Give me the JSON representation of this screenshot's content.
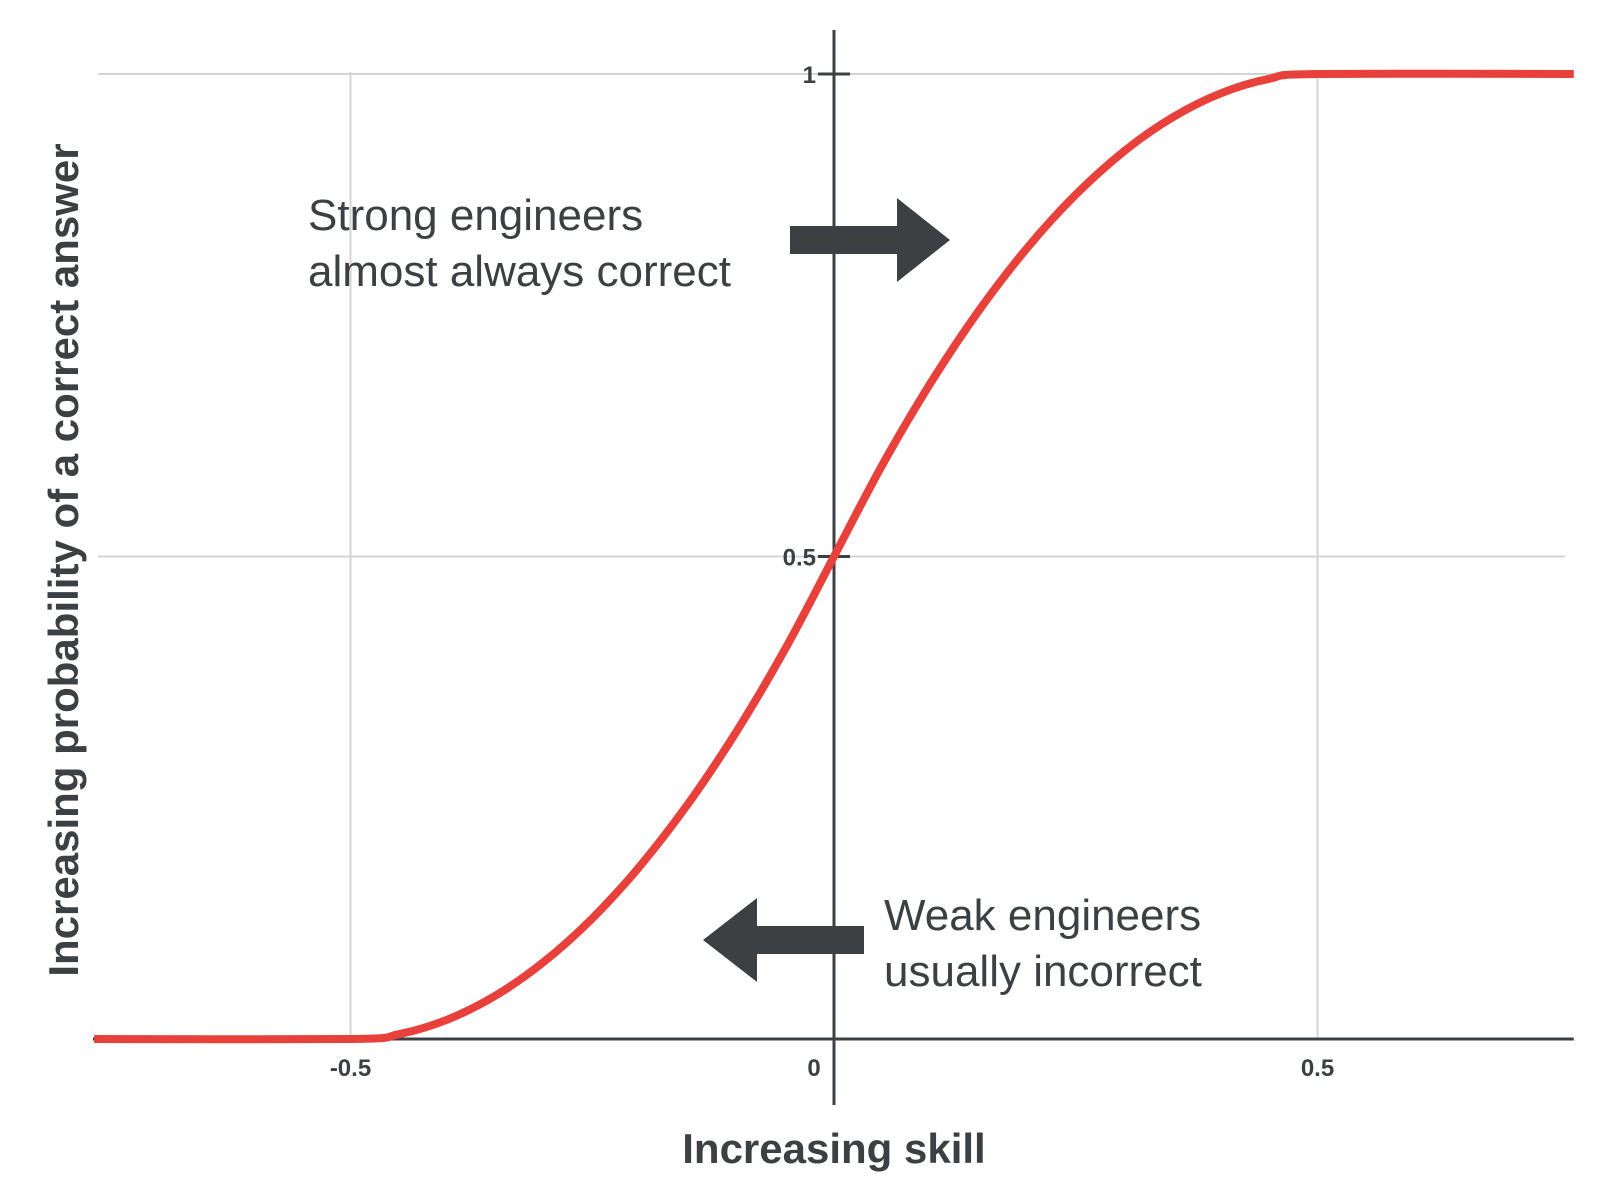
{
  "chart_data": {
    "type": "line",
    "xlabel": "Increasing skill",
    "ylabel": "Increasing probability of a correct answer",
    "xlim": [
      -0.765,
      0.765
    ],
    "ylim": [
      0,
      1
    ],
    "x_ticks": [
      {
        "value": -0.5,
        "label": "-0.5"
      },
      {
        "value": 0,
        "label": "0"
      },
      {
        "value": 0.5,
        "label": "0.5"
      }
    ],
    "y_ticks": [
      {
        "value": 0.5,
        "label": "0.5"
      },
      {
        "value": 1,
        "label": "1"
      }
    ],
    "grid": true,
    "series": [
      {
        "color": "#e8403a",
        "x": [
          -0.765,
          -0.5,
          -0.45,
          -0.4,
          -0.35,
          -0.3,
          -0.25,
          -0.2,
          -0.15,
          -0.1,
          -0.05,
          0,
          0.05,
          0.1,
          0.15,
          0.2,
          0.25,
          0.3,
          0.35,
          0.4,
          0.45,
          0.5,
          0.765
        ],
        "y": [
          0,
          0,
          0.005,
          0.02,
          0.045,
          0.08,
          0.125,
          0.18,
          0.245,
          0.32,
          0.405,
          0.5,
          0.595,
          0.68,
          0.755,
          0.82,
          0.875,
          0.92,
          0.955,
          0.98,
          0.995,
          1,
          1
        ]
      }
    ],
    "annotations": [
      {
        "lines": [
          "Strong engineers",
          "almost always correct"
        ],
        "arrow": "right"
      },
      {
        "lines": [
          "Weak engineers",
          "usually incorrect"
        ],
        "arrow": "left"
      }
    ]
  },
  "colors": {
    "curve": "#e8403a",
    "axis": "#3c4043",
    "grid": "#d4d4d4",
    "arrow": "#3c4043"
  }
}
